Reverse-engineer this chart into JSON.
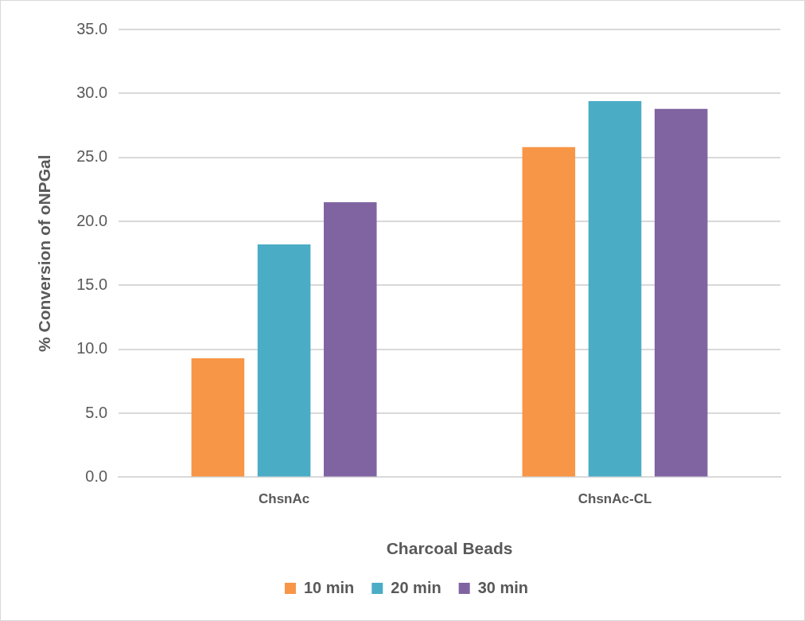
{
  "chart_data": {
    "type": "bar",
    "xlabel": "Charcoal Beads",
    "ylabel": "% Conversion of oNPGal",
    "categories": [
      "ChsnAc",
      "ChsnAc-CL"
    ],
    "series": [
      {
        "name": "10 min",
        "color": "#f79646",
        "values": [
          9.3,
          25.8
        ]
      },
      {
        "name": "20 min",
        "color": "#4bacc6",
        "values": [
          18.2,
          29.4
        ]
      },
      {
        "name": "30 min",
        "color": "#8064a2",
        "values": [
          21.5,
          28.8
        ]
      }
    ],
    "ylim": [
      0,
      35
    ],
    "yticks": [
      {
        "value": 0,
        "label": "0.0"
      },
      {
        "value": 5,
        "label": "5.0"
      },
      {
        "value": 10,
        "label": "10.0"
      },
      {
        "value": 15,
        "label": "15.0"
      },
      {
        "value": 20,
        "label": "20.0"
      },
      {
        "value": 25,
        "label": "25.0"
      },
      {
        "value": 30,
        "label": "30.0"
      },
      {
        "value": 35,
        "label": "35.0"
      }
    ],
    "grid": "y",
    "legend": "bottom"
  }
}
